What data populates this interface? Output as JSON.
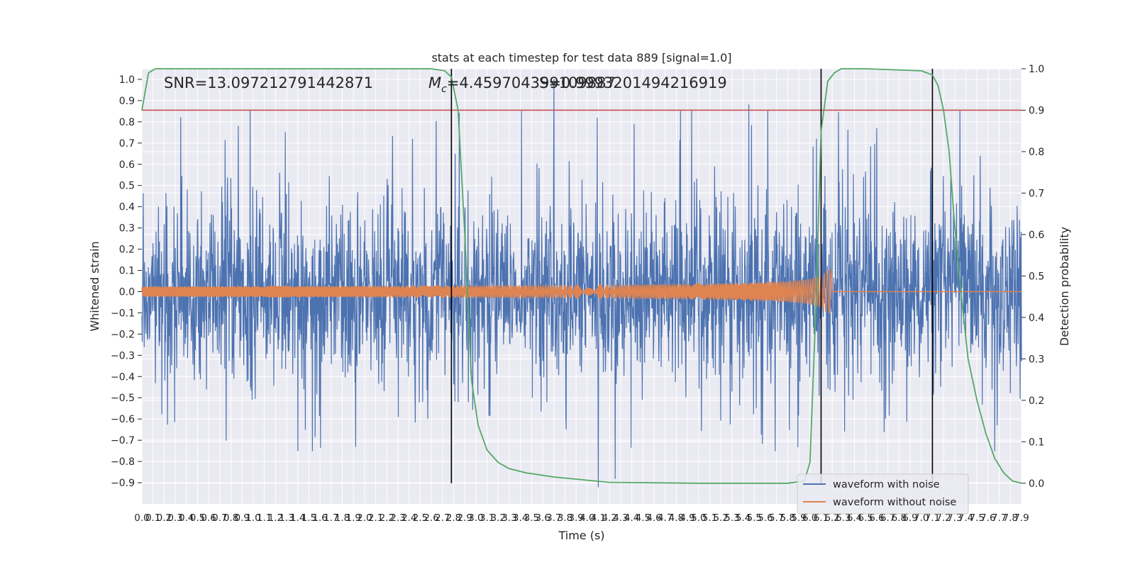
{
  "chart_data": {
    "type": "line",
    "title": "stats at each timestep for test data 889 [signal=1.0]",
    "xlabel": "Time (s)",
    "ylabel_left": "Whitened strain",
    "ylabel_right": "Detection probability",
    "xlim": [
      0.0,
      7.9
    ],
    "ylim_left": [
      -1.0,
      1.05
    ],
    "ylim_right": [
      -0.05,
      1.0
    ],
    "xticks": [
      "0.0",
      "0.1",
      "0.2",
      "0.3",
      "0.4",
      "0.5",
      "0.6",
      "0.7",
      "0.8",
      "0.9",
      "1.0",
      "1.1",
      "1.2",
      "1.3",
      "1.4",
      "1.5",
      "1.6",
      "1.7",
      "1.8",
      "1.9",
      "2.0",
      "2.1",
      "2.2",
      "2.3",
      "2.4",
      "2.5",
      "2.6",
      "2.7",
      "2.8",
      "2.9",
      "3.0",
      "3.1",
      "3.2",
      "3.3",
      "3.4",
      "3.5",
      "3.6",
      "3.7",
      "3.8",
      "3.9",
      "4.0",
      "4.1",
      "4.2",
      "4.3",
      "4.4",
      "4.5",
      "4.6",
      "4.7",
      "4.8",
      "4.9",
      "5.0",
      "5.1",
      "5.2",
      "5.3",
      "5.4",
      "5.5",
      "5.6",
      "5.7",
      "5.8",
      "5.9",
      "6.0",
      "6.1",
      "6.2",
      "6.3",
      "6.4",
      "6.5",
      "6.6",
      "6.7",
      "6.8",
      "6.9",
      "7.0",
      "7.1",
      "7.2",
      "7.3",
      "7.4",
      "7.5",
      "7.6",
      "7.7",
      "7.8",
      "7.9"
    ],
    "yticks_left": [
      "1.0",
      "0.9",
      "0.8",
      "0.7",
      "0.6",
      "0.5",
      "0.4",
      "0.3",
      "0.2",
      "0.1",
      "0.0",
      "−0.1",
      "−0.2",
      "−0.3",
      "−0.4",
      "−0.5",
      "−0.6",
      "−0.7",
      "−0.8",
      "−0.9"
    ],
    "yticks_right": [
      "1.0",
      "0.9",
      "0.8",
      "0.7",
      "0.6",
      "0.5",
      "0.4",
      "0.3",
      "0.2",
      "0.1",
      "0.0"
    ],
    "annotations": {
      "snr": "SNR=13.097212791442871",
      "mc_symbol": "M",
      "mc_sub": "c",
      "mc_value": "=4.459704399109887",
      "overlap": "S=0.9993201494216919"
    },
    "legend": [
      {
        "label": "waveform with noise",
        "color": "#4c72b0"
      },
      {
        "label": "waveform without noise",
        "color": "#dd8452"
      }
    ],
    "series": [
      {
        "name": "waveform with noise",
        "color": "#4c72b0",
        "kind": "noise",
        "approx_envelope": [
          -0.75,
          0.85
        ],
        "notable_peaks": [
          [
            0.35,
            0.82
          ],
          [
            3.7,
            1.0
          ],
          [
            5.45,
            0.88
          ],
          [
            2.85,
            0.84
          ],
          [
            4.1,
            -0.92
          ],
          [
            4.25,
            -0.88
          ]
        ]
      },
      {
        "name": "waveform without noise",
        "color": "#dd8452",
        "kind": "chirp",
        "t_start": 0.0,
        "t_merger": 6.17,
        "amp_start": 0.025,
        "amp_merger": 0.22
      },
      {
        "name": "detection probability",
        "color": "#55a868",
        "axis": "right",
        "x": [
          0.0,
          0.06,
          0.12,
          0.3,
          1.0,
          2.0,
          2.6,
          2.72,
          2.78,
          2.84,
          2.9,
          2.96,
          3.02,
          3.1,
          3.2,
          3.3,
          3.45,
          3.7,
          4.2,
          5.0,
          5.8,
          5.95,
          6.0,
          6.05,
          6.1,
          6.16,
          6.22,
          6.28,
          6.35,
          6.5,
          7.0,
          7.1,
          7.15,
          7.2,
          7.25,
          7.3,
          7.36,
          7.42,
          7.5,
          7.58,
          7.66,
          7.74,
          7.82,
          7.9
        ],
        "y": [
          0.9,
          0.99,
          1.0,
          1.0,
          1.0,
          1.0,
          1.0,
          0.995,
          0.98,
          0.9,
          0.6,
          0.25,
          0.14,
          0.08,
          0.05,
          0.035,
          0.025,
          0.015,
          0.002,
          0.0,
          0.0,
          0.005,
          0.05,
          0.4,
          0.85,
          0.97,
          0.99,
          1.0,
          1.0,
          1.0,
          0.995,
          0.985,
          0.96,
          0.9,
          0.8,
          0.62,
          0.45,
          0.3,
          0.2,
          0.12,
          0.06,
          0.025,
          0.005,
          0.0
        ]
      },
      {
        "name": "threshold",
        "color": "#c44e52",
        "axis": "right",
        "value": 0.9
      }
    ],
    "markers": [
      2.78,
      6.1,
      7.1
    ]
  }
}
